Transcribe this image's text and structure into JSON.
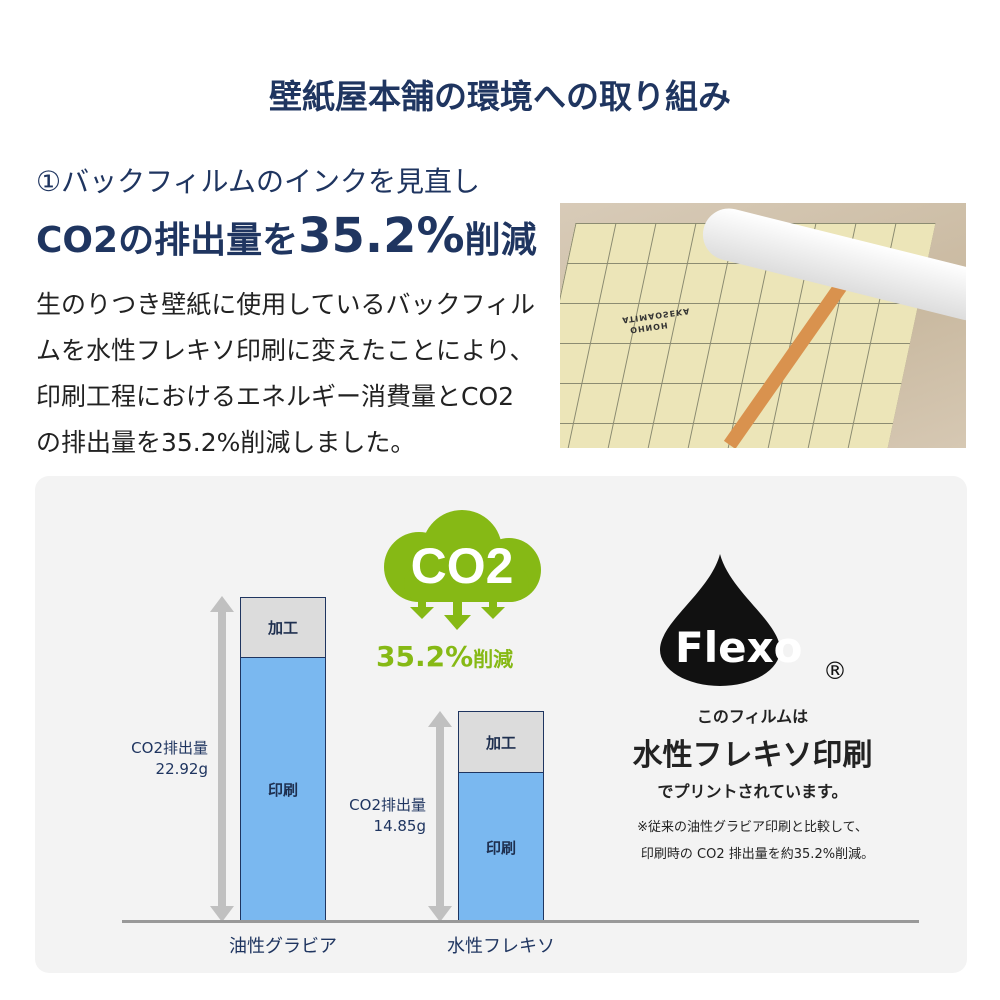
{
  "title": "壁紙屋本舗の環境への取り組み",
  "subtitle": "①バックフィルムのインクを見直し",
  "headline": {
    "prefix": "CO2の排出量を",
    "value": "35.2%",
    "suffix": "削減"
  },
  "body": "生のりつき壁紙に使用しているバックフィルムを水性フレキソ印刷に変えたことにより、印刷工程におけるエネルギー消費量とCO2の排出量を35.2%削減しました。",
  "photo": {
    "print_text": [
      "ATIMAOSEKA",
      "OHNOH"
    ]
  },
  "diagram": {
    "cloud_label": "CO2",
    "reduction": {
      "value": "35.2%",
      "suffix": "削減"
    },
    "bars": [
      {
        "name": "油性グラビア",
        "total_label": "CO2排出量",
        "total": "22.92g",
        "value": 22.92,
        "top_segment": "加工",
        "bottom_segment": "印刷"
      },
      {
        "name": "水性フレキソ",
        "total_label": "CO2排出量",
        "total": "14.85g",
        "value": 14.85,
        "top_segment": "加工",
        "bottom_segment": "印刷"
      }
    ],
    "colors": {
      "print": "#7ab8f0",
      "process": "#dcdcdc",
      "cloud": "#86b915",
      "border": "#1f3560"
    }
  },
  "flexo": {
    "logo": "Flexo",
    "registered": "®",
    "line1": "このフィルムは",
    "line2": "水性フレキソ印刷",
    "line3": "でプリントされています。",
    "note1": "※従来の油性グラビア印刷と比較して、",
    "note2": "印刷時の CO2 排出量を約35.2%削減。"
  }
}
